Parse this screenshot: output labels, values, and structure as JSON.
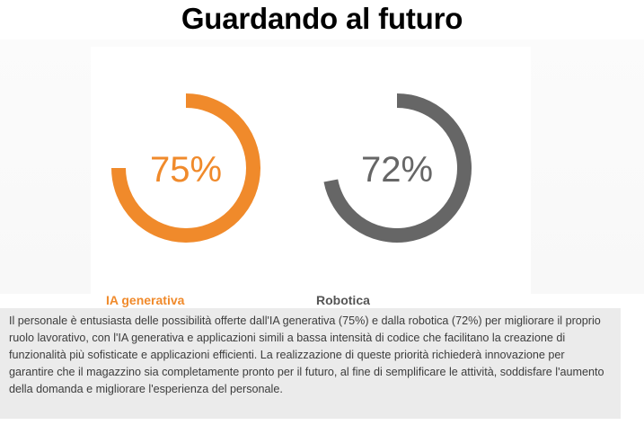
{
  "title": "Guardando al futuro",
  "chart_data": {
    "type": "pie",
    "title": "Guardando al futuro",
    "series": [
      {
        "name": "IA generativa",
        "value": 75,
        "unit": "%",
        "color": "#f08a2b"
      },
      {
        "name": "Robotica",
        "value": 72,
        "unit": "%",
        "color": "#666666"
      }
    ],
    "value_labels": [
      "75%",
      "72%"
    ]
  },
  "description": "Il personale è entusiasta delle possibilità offerte dall'IA generativa (75%) e dalla robotica (72%) per migliorare il proprio ruolo lavorativo, con l'IA generativa e applicazioni simili a bassa intensità di codice che facilitano la creazione di funzionalità più sofisticate e applicazioni efficienti. La realizzazione di queste priorità richiederà innovazione per garantire che il magazzino sia completamente pronto per il futuro, al fine di semplificare le attività, soddisfare l'aumento della domanda e migliorare l'esperienza del personale."
}
